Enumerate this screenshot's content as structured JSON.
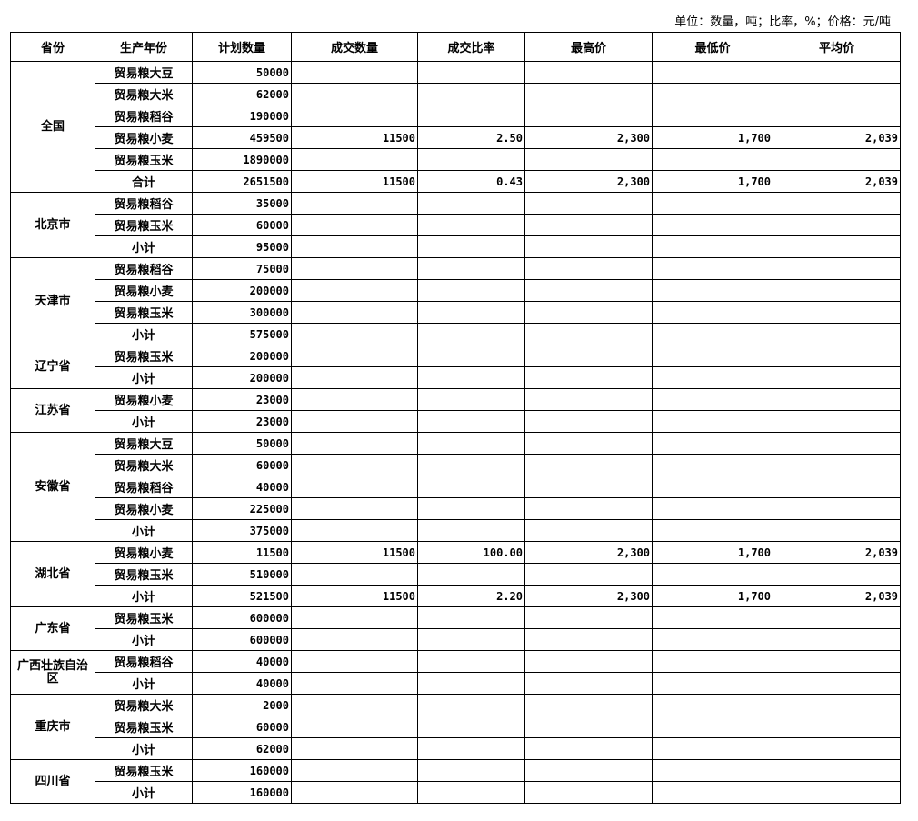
{
  "unit_note": "单位：数量，吨；比率，%；价格：元/吨",
  "headers": [
    "省份",
    "生产年份",
    "计划数量",
    "成交数量",
    "成交比率",
    "最高价",
    "最低价",
    "平均价"
  ],
  "groups": [
    {
      "province": "全国",
      "rows": [
        [
          "贸易粮大豆",
          "50000",
          "",
          "",
          "",
          "",
          ""
        ],
        [
          "贸易粮大米",
          "62000",
          "",
          "",
          "",
          "",
          ""
        ],
        [
          "贸易粮稻谷",
          "190000",
          "",
          "",
          "",
          "",
          ""
        ],
        [
          "贸易粮小麦",
          "459500",
          "11500",
          "2.50",
          "2,300",
          "1,700",
          "2,039"
        ],
        [
          "贸易粮玉米",
          "1890000",
          "",
          "",
          "",
          "",
          ""
        ],
        [
          "合计",
          "2651500",
          "11500",
          "0.43",
          "2,300",
          "1,700",
          "2,039"
        ]
      ]
    },
    {
      "province": "北京市",
      "rows": [
        [
          "贸易粮稻谷",
          "35000",
          "",
          "",
          "",
          "",
          ""
        ],
        [
          "贸易粮玉米",
          "60000",
          "",
          "",
          "",
          "",
          ""
        ],
        [
          "小计",
          "95000",
          "",
          "",
          "",
          "",
          ""
        ]
      ]
    },
    {
      "province": "天津市",
      "rows": [
        [
          "贸易粮稻谷",
          "75000",
          "",
          "",
          "",
          "",
          ""
        ],
        [
          "贸易粮小麦",
          "200000",
          "",
          "",
          "",
          "",
          ""
        ],
        [
          "贸易粮玉米",
          "300000",
          "",
          "",
          "",
          "",
          ""
        ],
        [
          "小计",
          "575000",
          "",
          "",
          "",
          "",
          ""
        ]
      ]
    },
    {
      "province": "辽宁省",
      "rows": [
        [
          "贸易粮玉米",
          "200000",
          "",
          "",
          "",
          "",
          ""
        ],
        [
          "小计",
          "200000",
          "",
          "",
          "",
          "",
          ""
        ]
      ]
    },
    {
      "province": "江苏省",
      "rows": [
        [
          "贸易粮小麦",
          "23000",
          "",
          "",
          "",
          "",
          ""
        ],
        [
          "小计",
          "23000",
          "",
          "",
          "",
          "",
          ""
        ]
      ]
    },
    {
      "province": "安徽省",
      "rows": [
        [
          "贸易粮大豆",
          "50000",
          "",
          "",
          "",
          "",
          ""
        ],
        [
          "贸易粮大米",
          "60000",
          "",
          "",
          "",
          "",
          ""
        ],
        [
          "贸易粮稻谷",
          "40000",
          "",
          "",
          "",
          "",
          ""
        ],
        [
          "贸易粮小麦",
          "225000",
          "",
          "",
          "",
          "",
          ""
        ],
        [
          "小计",
          "375000",
          "",
          "",
          "",
          "",
          ""
        ]
      ]
    },
    {
      "province": "湖北省",
      "rows": [
        [
          "贸易粮小麦",
          "11500",
          "11500",
          "100.00",
          "2,300",
          "1,700",
          "2,039"
        ],
        [
          "贸易粮玉米",
          "510000",
          "",
          "",
          "",
          "",
          ""
        ],
        [
          "小计",
          "521500",
          "11500",
          "2.20",
          "2,300",
          "1,700",
          "2,039"
        ]
      ]
    },
    {
      "province": "广东省",
      "rows": [
        [
          "贸易粮玉米",
          "600000",
          "",
          "",
          "",
          "",
          ""
        ],
        [
          "小计",
          "600000",
          "",
          "",
          "",
          "",
          ""
        ]
      ]
    },
    {
      "province": "广西壮族自治区",
      "rows": [
        [
          "贸易粮稻谷",
          "40000",
          "",
          "",
          "",
          "",
          ""
        ],
        [
          "小计",
          "40000",
          "",
          "",
          "",
          "",
          ""
        ]
      ]
    },
    {
      "province": "重庆市",
      "rows": [
        [
          "贸易粮大米",
          "2000",
          "",
          "",
          "",
          "",
          ""
        ],
        [
          "贸易粮玉米",
          "60000",
          "",
          "",
          "",
          "",
          ""
        ],
        [
          "小计",
          "62000",
          "",
          "",
          "",
          "",
          ""
        ]
      ]
    },
    {
      "province": "四川省",
      "rows": [
        [
          "贸易粮玉米",
          "160000",
          "",
          "",
          "",
          "",
          ""
        ],
        [
          "小计",
          "160000",
          "",
          "",
          "",
          "",
          ""
        ]
      ]
    }
  ]
}
